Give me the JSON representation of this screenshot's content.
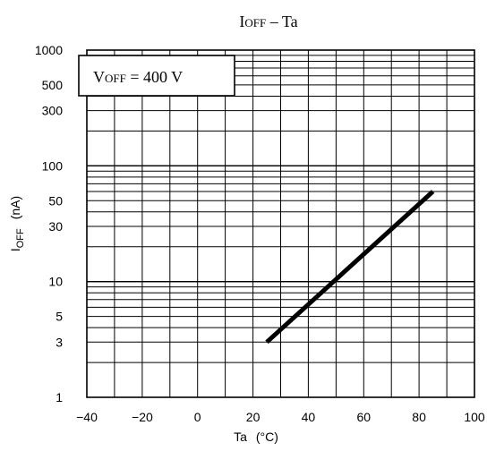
{
  "chart_data": {
    "type": "line",
    "title": "IOFF – Ta",
    "title_main": "I",
    "title_sub": "OFF",
    "title_rest": " – Ta",
    "xlabel": "Ta (°C)",
    "xlabel_main": "Ta",
    "xlabel_unit": "(°C)",
    "ylabel": "IOFF (nA)",
    "ylabel_main": "I",
    "ylabel_sub": "OFF",
    "ylabel_unit": "(nA)",
    "xlim": [
      -40,
      100
    ],
    "ylim": [
      1,
      1000
    ],
    "yscale": "log",
    "grid": true,
    "x_ticks": [
      -40,
      -20,
      0,
      20,
      40,
      60,
      80,
      100
    ],
    "x_tick_labels": [
      "−40",
      "−20",
      "0",
      "20",
      "40",
      "60",
      "80",
      "100"
    ],
    "y_ticks": [
      1,
      3,
      5,
      10,
      30,
      50,
      100,
      300,
      500,
      1000
    ],
    "y_tick_labels": [
      "1",
      "3",
      "5",
      "10",
      "30",
      "50",
      "100",
      "300",
      "500",
      "1000"
    ],
    "annotation": {
      "text": "VOFF = 400 V",
      "main": "V",
      "sub": "OFF",
      "rest": " = 400 V",
      "position": "top-left"
    },
    "series": [
      {
        "x": [
          25,
          85
        ],
        "y": [
          3,
          60
        ]
      }
    ]
  }
}
